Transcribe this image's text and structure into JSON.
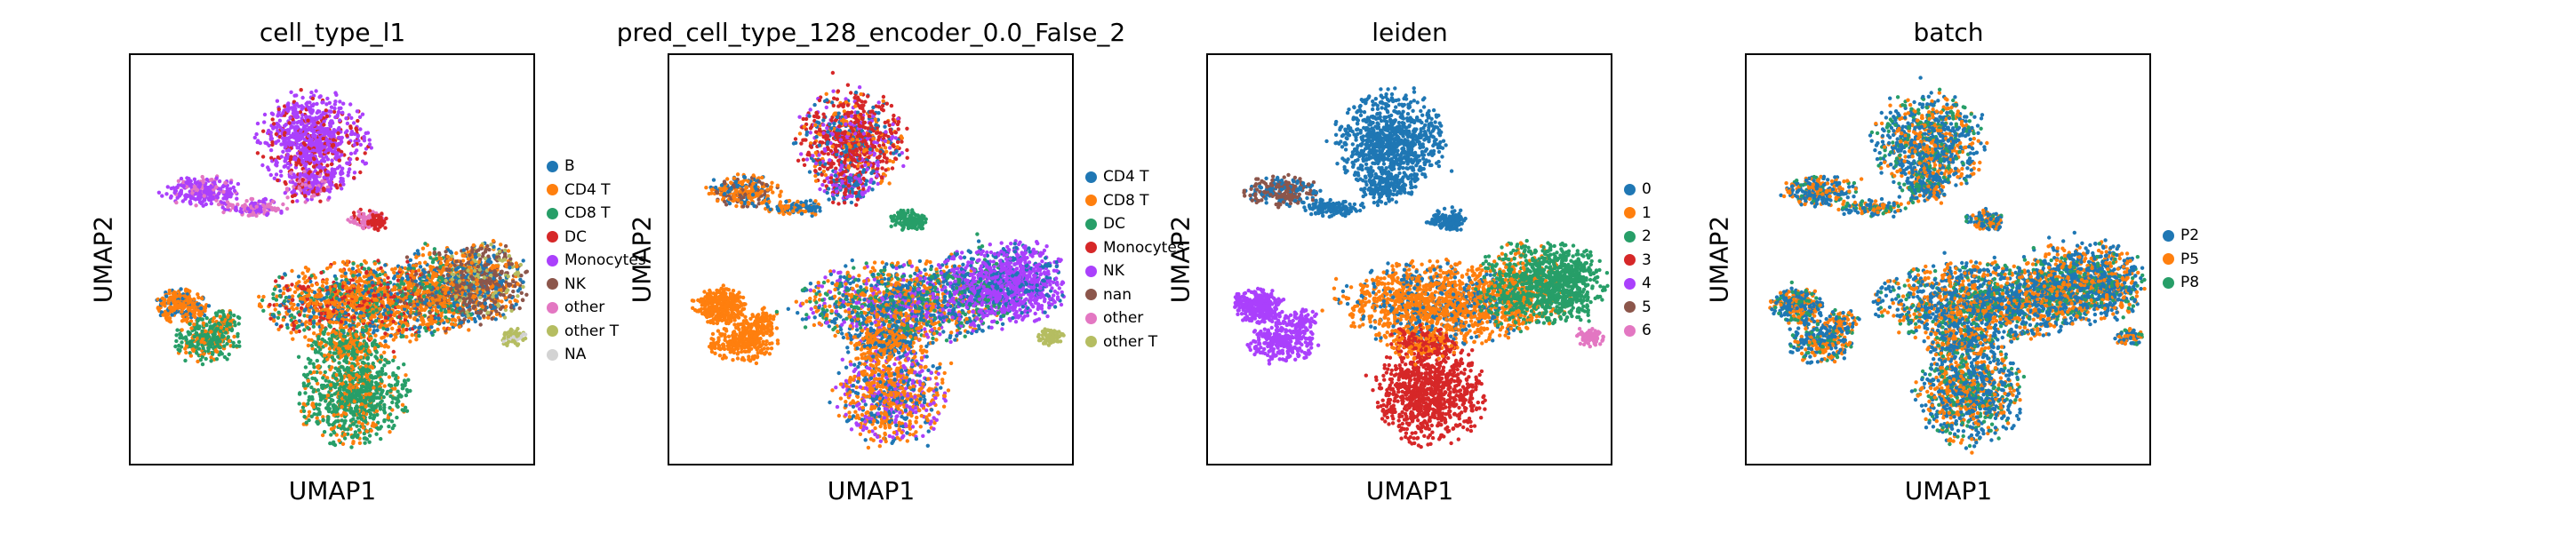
{
  "chart_data": [
    {
      "type": "scatter",
      "title": "cell_type_l1",
      "xlabel": "UMAP1",
      "ylabel": "UMAP2",
      "legend_position": "right",
      "legend": [
        {
          "label": "B",
          "color": "#1f77b4"
        },
        {
          "label": "CD4 T",
          "color": "#ff7f0e"
        },
        {
          "label": "CD8 T",
          "color": "#279e68"
        },
        {
          "label": "DC",
          "color": "#d62728"
        },
        {
          "label": "Monocytes",
          "color": "#aa40fc"
        },
        {
          "label": "NK",
          "color": "#8c564b"
        },
        {
          "label": "other",
          "color": "#e377c2"
        },
        {
          "label": "other T",
          "color": "#b5bd61"
        },
        {
          "label": "NA",
          "color": "#d3d3d3"
        }
      ]
    },
    {
      "type": "scatter",
      "title": "pred_cell_type_128_encoder_0.0_False_2",
      "xlabel": "UMAP1",
      "ylabel": "UMAP2",
      "legend_position": "right",
      "legend": [
        {
          "label": "CD4 T",
          "color": "#1f77b4"
        },
        {
          "label": "CD8 T",
          "color": "#ff7f0e"
        },
        {
          "label": "DC",
          "color": "#279e68"
        },
        {
          "label": "Monocytes",
          "color": "#d62728"
        },
        {
          "label": "NK",
          "color": "#aa40fc"
        },
        {
          "label": "nan",
          "color": "#8c564b"
        },
        {
          "label": "other",
          "color": "#e377c2"
        },
        {
          "label": "other T",
          "color": "#b5bd61"
        }
      ]
    },
    {
      "type": "scatter",
      "title": "leiden",
      "xlabel": "UMAP1",
      "ylabel": "UMAP2",
      "legend_position": "right",
      "legend": [
        {
          "label": "0",
          "color": "#1f77b4"
        },
        {
          "label": "1",
          "color": "#ff7f0e"
        },
        {
          "label": "2",
          "color": "#279e68"
        },
        {
          "label": "3",
          "color": "#d62728"
        },
        {
          "label": "4",
          "color": "#aa40fc"
        },
        {
          "label": "5",
          "color": "#8c564b"
        },
        {
          "label": "6",
          "color": "#e377c2"
        }
      ]
    },
    {
      "type": "scatter",
      "title": "batch",
      "xlabel": "UMAP1",
      "ylabel": "UMAP2",
      "legend_position": "right",
      "legend": [
        {
          "label": "P2",
          "color": "#1f77b4"
        },
        {
          "label": "P5",
          "color": "#ff7f0e"
        },
        {
          "label": "P8",
          "color": "#279e68"
        }
      ]
    }
  ]
}
